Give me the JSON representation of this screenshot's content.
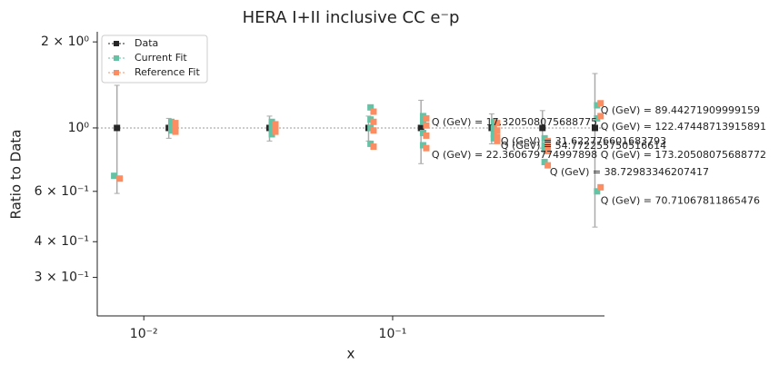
{
  "chart_data": {
    "type": "scatter",
    "title": "HERA I+II inclusive CC e⁻p",
    "x_label": "x",
    "y_label": "Ratio to Data",
    "log_x": true,
    "log_y": true,
    "xlim": [
      0.0065,
      0.71
    ],
    "ylim": [
      0.22,
      2.17
    ],
    "xticks": [
      {
        "value": 0.01,
        "label": "10⁻²"
      },
      {
        "value": 0.1,
        "label": "10⁻¹"
      }
    ],
    "yticks": [
      {
        "value": 0.3,
        "label": "3 × 10⁻¹"
      },
      {
        "value": 0.4,
        "label": "4 × 10⁻¹"
      },
      {
        "value": 0.6,
        "label": "6 × 10⁻¹"
      },
      {
        "value": 1,
        "label": "10⁰"
      },
      {
        "value": 2,
        "label": "2 × 10⁰"
      }
    ],
    "reference_line": 1,
    "legend": "upper left",
    "series": [
      {
        "name": "Data",
        "color": "#262626",
        "x": [
          0.0078,
          0.0126,
          0.032,
          0.08,
          0.13,
          0.25,
          0.4,
          0.65
        ],
        "values": [
          1,
          1,
          1,
          1,
          1,
          1,
          1,
          1
        ],
        "errors": [
          0.41,
          0.08,
          0.1,
          0.1,
          0.25,
          0.12,
          0.15,
          0.55
        ]
      },
      {
        "name": "Current Fit",
        "color": "#66c2a5",
        "x": [
          0.0076,
          0.0129,
          0.0129,
          0.0129,
          0.0327,
          0.0327,
          0.0327,
          0.0327,
          0.0815,
          0.0815,
          0.0815,
          0.0815,
          0.1325,
          0.1325,
          0.1325,
          0.1325,
          0.255,
          0.255,
          0.255,
          0.255,
          0.408,
          0.408,
          0.408,
          0.408,
          0.663,
          0.663,
          0.663
        ],
        "values": [
          0.68,
          1.05,
          1.02,
          0.98,
          1.05,
          1.02,
          0.98,
          0.95,
          1.18,
          1.07,
          1.0,
          0.88,
          1.1,
          1.05,
          0.96,
          0.87,
          1.05,
          1.0,
          0.95,
          0.92,
          0.92,
          0.87,
          0.84,
          0.76,
          1.2,
          1.08,
          0.6
        ]
      },
      {
        "name": "Reference Fit",
        "color": "#fc8d62",
        "x": [
          0.008,
          0.0134,
          0.0134,
          0.0134,
          0.0338,
          0.0338,
          0.0338,
          0.0838,
          0.0838,
          0.0838,
          0.0838,
          0.1365,
          0.1365,
          0.1365,
          0.1365,
          0.263,
          0.263,
          0.263,
          0.263,
          0.42,
          0.42,
          0.42,
          0.42,
          0.685,
          0.685,
          0.685
        ],
        "values": [
          0.665,
          1.04,
          1.0,
          0.97,
          1.03,
          1.0,
          0.97,
          1.14,
          1.05,
          0.98,
          0.86,
          1.08,
          1.02,
          0.94,
          0.85,
          1.04,
          0.98,
          0.93,
          0.9,
          0.9,
          0.86,
          0.83,
          0.74,
          1.22,
          1.1,
          0.62
        ]
      }
    ],
    "annotations": [
      {
        "text": "Q (GeV) = 17.320508075688775",
        "x": 0.1435,
        "y": 1.045
      },
      {
        "text": "Q (GeV) = 89.44271909999159",
        "x": 0.685,
        "y": 1.149
      },
      {
        "text": "Q (GeV) = 122.47448713915891",
        "x": 0.685,
        "y": 1.007
      },
      {
        "text": "Q (GeV) = 31.622776601683793",
        "x": 0.272,
        "y": 0.896
      },
      {
        "text": "Q (GeV) = 54.772255750516614",
        "x": 0.272,
        "y": 0.864
      },
      {
        "text": "Q (GeV) = 22.360679774997898",
        "x": 0.1435,
        "y": 0.803
      },
      {
        "text": "Q (GeV) = 173.20508075688772",
        "x": 0.685,
        "y": 0.803
      },
      {
        "text": "Q (GeV) = 38.72983346207417",
        "x": 0.428,
        "y": 0.699
      },
      {
        "text": "Q (GeV) = 70.71067811865476",
        "x": 0.685,
        "y": 0.554
      }
    ]
  }
}
